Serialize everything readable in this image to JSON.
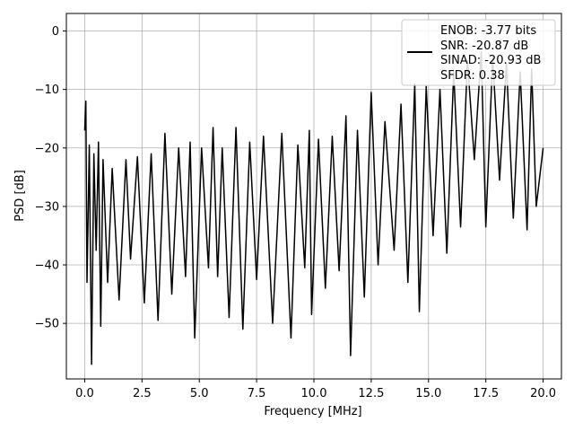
{
  "chart_data": {
    "type": "line",
    "title": "",
    "xlabel": "Frequency [MHz]",
    "ylabel": "PSD [dB]",
    "xlim": [
      -0.8,
      20.8
    ],
    "ylim": [
      -59.5,
      3
    ],
    "x_ticks": [
      0.0,
      2.5,
      5.0,
      7.5,
      10.0,
      12.5,
      15.0,
      17.5,
      20.0
    ],
    "x_tick_labels": [
      "0.0",
      "2.5",
      "5.0",
      "7.5",
      "10.0",
      "12.5",
      "15.0",
      "17.5",
      "20.0"
    ],
    "y_ticks": [
      0,
      -10,
      -20,
      -30,
      -40,
      -50
    ],
    "y_tick_labels": [
      "0",
      "−10",
      "−20",
      "−30",
      "−40",
      "−50"
    ],
    "grid": true,
    "legend_position": "upper right",
    "legend_lines": [
      "ENOB: -3.77 bits",
      "SNR: -20.87 dB",
      "SINAD: -20.93 dB",
      "SFDR: 0.38"
    ],
    "series": [
      {
        "color": "#000000",
        "points": [
          [
            0.0,
            -17.0
          ],
          [
            0.05,
            -12.0
          ],
          [
            0.1,
            -43.0
          ],
          [
            0.2,
            -19.5
          ],
          [
            0.3,
            -57.0
          ],
          [
            0.4,
            -21.0
          ],
          [
            0.5,
            -37.5
          ],
          [
            0.6,
            -19.0
          ],
          [
            0.7,
            -50.5
          ],
          [
            0.8,
            -22.0
          ],
          [
            1.0,
            -43.0
          ],
          [
            1.2,
            -23.5
          ],
          [
            1.5,
            -46.0
          ],
          [
            1.8,
            -22.0
          ],
          [
            2.0,
            -39.0
          ],
          [
            2.3,
            -21.5
          ],
          [
            2.6,
            -46.5
          ],
          [
            2.9,
            -21.0
          ],
          [
            3.2,
            -49.5
          ],
          [
            3.5,
            -17.5
          ],
          [
            3.8,
            -45.0
          ],
          [
            4.1,
            -20.0
          ],
          [
            4.4,
            -42.0
          ],
          [
            4.6,
            -19.0
          ],
          [
            4.8,
            -52.5
          ],
          [
            5.1,
            -20.0
          ],
          [
            5.4,
            -40.5
          ],
          [
            5.6,
            -16.5
          ],
          [
            5.8,
            -42.0
          ],
          [
            6.0,
            -20.0
          ],
          [
            6.3,
            -49.0
          ],
          [
            6.6,
            -16.5
          ],
          [
            6.9,
            -51.0
          ],
          [
            7.2,
            -19.0
          ],
          [
            7.5,
            -42.5
          ],
          [
            7.8,
            -18.0
          ],
          [
            8.2,
            -50.0
          ],
          [
            8.6,
            -17.5
          ],
          [
            9.0,
            -52.5
          ],
          [
            9.3,
            -19.5
          ],
          [
            9.6,
            -40.5
          ],
          [
            9.8,
            -17.0
          ],
          [
            9.9,
            -48.5
          ],
          [
            10.2,
            -18.5
          ],
          [
            10.5,
            -44.0
          ],
          [
            10.8,
            -18.0
          ],
          [
            11.1,
            -41.0
          ],
          [
            11.4,
            -14.5
          ],
          [
            11.6,
            -55.5
          ],
          [
            11.9,
            -17.0
          ],
          [
            12.2,
            -45.5
          ],
          [
            12.5,
            -10.5
          ],
          [
            12.8,
            -40.0
          ],
          [
            13.1,
            -15.5
          ],
          [
            13.5,
            -37.5
          ],
          [
            13.8,
            -12.5
          ],
          [
            14.1,
            -43.0
          ],
          [
            14.4,
            -9.0
          ],
          [
            14.6,
            -48.0
          ],
          [
            14.9,
            -9.5
          ],
          [
            15.2,
            -35.0
          ],
          [
            15.5,
            -10.0
          ],
          [
            15.8,
            -38.0
          ],
          [
            16.1,
            -7.0
          ],
          [
            16.4,
            -33.5
          ],
          [
            16.7,
            -5.0
          ],
          [
            17.0,
            -22.0
          ],
          [
            17.3,
            -3.5
          ],
          [
            17.5,
            -33.5
          ],
          [
            17.8,
            -4.5
          ],
          [
            18.1,
            -25.5
          ],
          [
            18.4,
            -5.5
          ],
          [
            18.7,
            -32.0
          ],
          [
            19.0,
            -7.0
          ],
          [
            19.3,
            -34.0
          ],
          [
            19.5,
            -6.5
          ],
          [
            19.7,
            -30.0
          ],
          [
            20.0,
            -20.0
          ]
        ]
      }
    ]
  }
}
